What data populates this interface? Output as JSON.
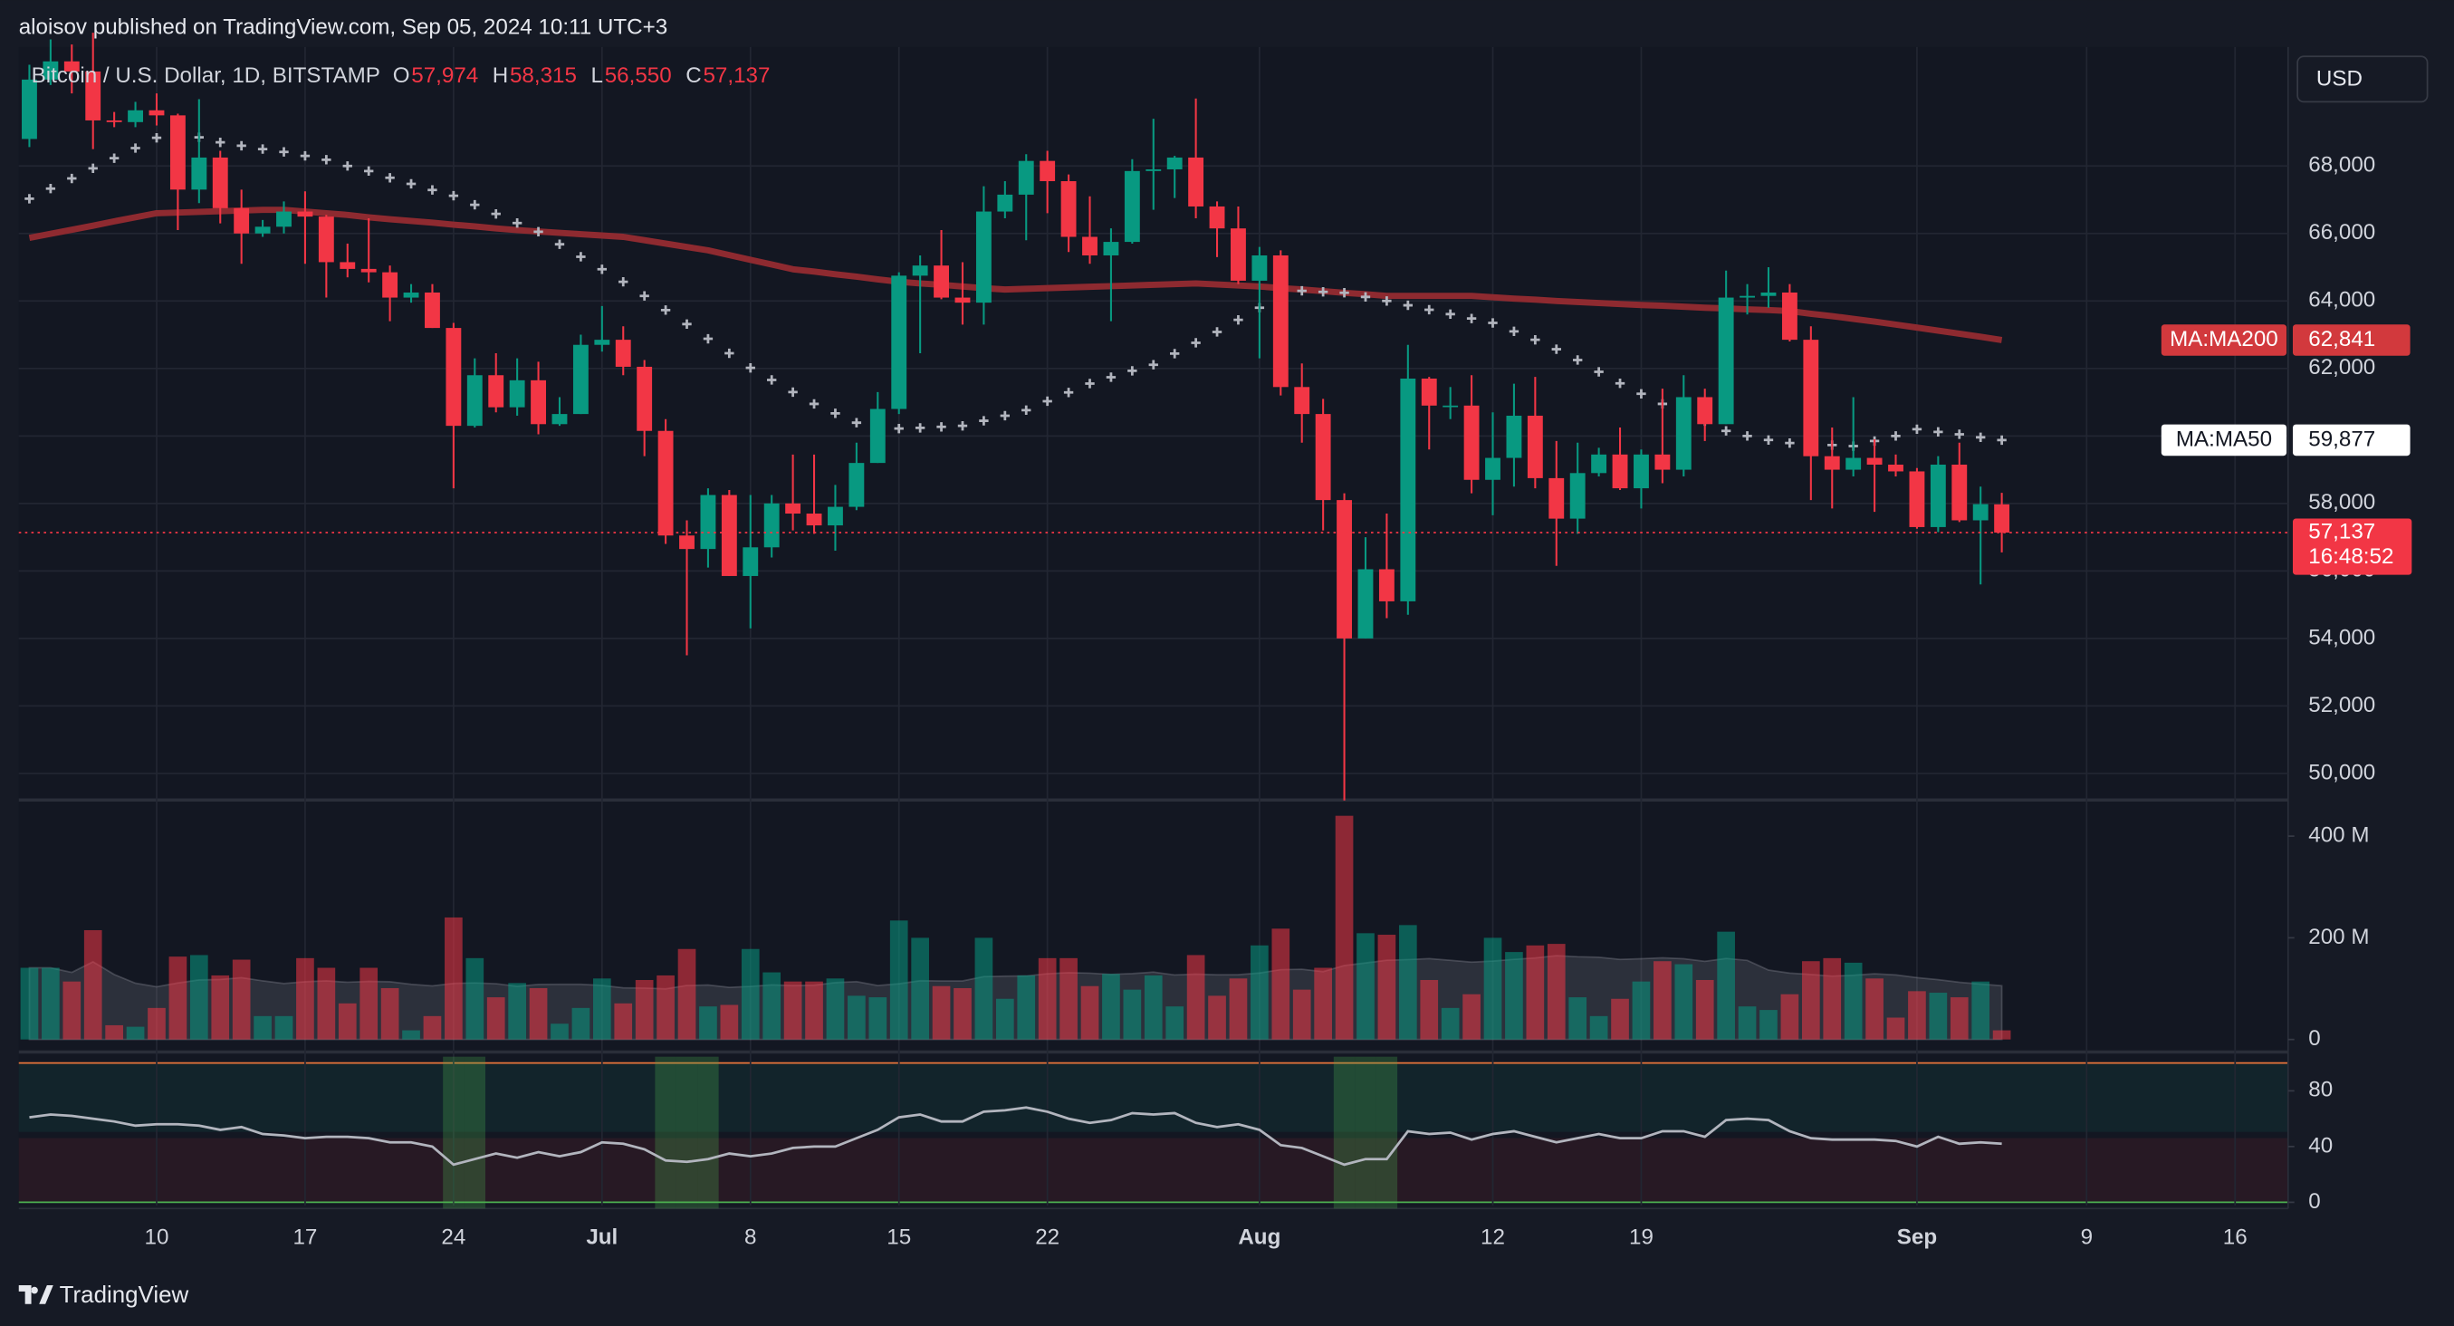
{
  "chart_data": {
    "type": "candlestick",
    "header": "aloisov published on TradingView.com, Sep 05, 2024 10:11 UTC+3",
    "symbol": "Bitcoin / U.S. Dollar, 1D, BITSTAMP",
    "legend_ohlc": [
      {
        "key": "O",
        "value": "57,974"
      },
      {
        "key": "H",
        "value": "58,315"
      },
      {
        "key": "L",
        "value": "56,550"
      },
      {
        "key": "C",
        "value": "57,137"
      }
    ],
    "currency": "USD",
    "footer": "TradingView",
    "up_color": "#089981",
    "down_color": "#f23645",
    "x": [
      "2024-06-04",
      "2024-06-05",
      "2024-06-06",
      "2024-06-07",
      "2024-06-08",
      "2024-06-09",
      "2024-06-10",
      "2024-06-11",
      "2024-06-12",
      "2024-06-13",
      "2024-06-14",
      "2024-06-15",
      "2024-06-16",
      "2024-06-17",
      "2024-06-18",
      "2024-06-19",
      "2024-06-20",
      "2024-06-21",
      "2024-06-22",
      "2024-06-23",
      "2024-06-24",
      "2024-06-25",
      "2024-06-26",
      "2024-06-27",
      "2024-06-28",
      "2024-06-29",
      "2024-06-30",
      "2024-07-01",
      "2024-07-02",
      "2024-07-03",
      "2024-07-04",
      "2024-07-05",
      "2024-07-06",
      "2024-07-07",
      "2024-07-08",
      "2024-07-09",
      "2024-07-10",
      "2024-07-11",
      "2024-07-12",
      "2024-07-13",
      "2024-07-14",
      "2024-07-15",
      "2024-07-16",
      "2024-07-17",
      "2024-07-18",
      "2024-07-19",
      "2024-07-20",
      "2024-07-21",
      "2024-07-22",
      "2024-07-23",
      "2024-07-24",
      "2024-07-25",
      "2024-07-26",
      "2024-07-27",
      "2024-07-28",
      "2024-07-29",
      "2024-07-30",
      "2024-07-31",
      "2024-08-01",
      "2024-08-02",
      "2024-08-03",
      "2024-08-04",
      "2024-08-05",
      "2024-08-06",
      "2024-08-07",
      "2024-08-08",
      "2024-08-09",
      "2024-08-10",
      "2024-08-11",
      "2024-08-12",
      "2024-08-13",
      "2024-08-14",
      "2024-08-15",
      "2024-08-16",
      "2024-08-17",
      "2024-08-18",
      "2024-08-19",
      "2024-08-20",
      "2024-08-21",
      "2024-08-22",
      "2024-08-23",
      "2024-08-24",
      "2024-08-25",
      "2024-08-26",
      "2024-08-27",
      "2024-08-28",
      "2024-08-29",
      "2024-08-30",
      "2024-08-31",
      "2024-09-01",
      "2024-09-02",
      "2024-09-03",
      "2024-09-04",
      "2024-09-05"
    ],
    "open": [
      68800,
      70560,
      71100,
      70800,
      69350,
      69300,
      69650,
      69500,
      67300,
      68250,
      66750,
      66000,
      66200,
      66650,
      66500,
      65150,
      64950,
      64850,
      64100,
      64250,
      63200,
      60300,
      61800,
      60850,
      61650,
      60350,
      60650,
      62700,
      62850,
      62050,
      60150,
      57050,
      56650,
      58250,
      55850,
      56700,
      58000,
      57700,
      57350,
      57900,
      59200,
      60800,
      64750,
      65050,
      64100,
      63950,
      66650,
      67150,
      68150,
      67550,
      65900,
      65350,
      65750,
      67850,
      67900,
      68250,
      66800,
      66150,
      64600,
      65350,
      61450,
      60650,
      58100,
      54000,
      56050,
      55100,
      61700,
      60900,
      60900,
      58700,
      59350,
      60600,
      58750,
      57550,
      58900,
      59450,
      58450,
      59450,
      59000,
      61150,
      60350,
      64100,
      64150,
      64250,
      62850,
      59400,
      59000,
      59350,
      59150,
      58950,
      57300,
      59150,
      57500,
      57974
    ],
    "high": [
      71000,
      71750,
      71600,
      71950,
      69600,
      69900,
      70150,
      69550,
      69980,
      68450,
      67300,
      66400,
      66950,
      67250,
      66550,
      65700,
      66450,
      65050,
      64500,
      64500,
      63350,
      62300,
      62450,
      62300,
      62200,
      61150,
      63000,
      63850,
      63250,
      62250,
      60500,
      57500,
      58450,
      58400,
      58250,
      58250,
      59450,
      59450,
      58550,
      59800,
      61300,
      64850,
      65350,
      66100,
      65150,
      67400,
      67550,
      68350,
      68450,
      67750,
      67100,
      66150,
      68200,
      69400,
      68300,
      70000,
      66950,
      66800,
      65600,
      65500,
      62150,
      61100,
      58300,
      57000,
      57700,
      62700,
      61750,
      61450,
      61800,
      60700,
      61550,
      61750,
      59850,
      59800,
      59650,
      60250,
      59600,
      61400,
      61800,
      61400,
      64900,
      64500,
      65000,
      64500,
      63250,
      60250,
      61150,
      59900,
      59450,
      59050,
      59400,
      59800,
      58500,
      58315
    ],
    "low": [
      68560,
      70400,
      70150,
      68500,
      69150,
      69150,
      69200,
      66100,
      66900,
      66300,
      65100,
      65900,
      66000,
      65100,
      64100,
      64700,
      64550,
      63400,
      63950,
      63200,
      58450,
      60250,
      60700,
      60600,
      60050,
      60300,
      60650,
      62500,
      61800,
      59400,
      56800,
      53500,
      56100,
      55850,
      54300,
      56400,
      57200,
      57100,
      56600,
      57800,
      59200,
      60650,
      62450,
      64050,
      63300,
      63300,
      66450,
      65800,
      66600,
      65450,
      65100,
      63400,
      65700,
      66700,
      67050,
      66450,
      65300,
      64500,
      62300,
      61200,
      59800,
      57200,
      49200,
      54000,
      54600,
      54700,
      59600,
      60500,
      58300,
      57650,
      58500,
      58450,
      56150,
      57100,
      58800,
      58400,
      57850,
      58600,
      58800,
      59850,
      60350,
      63600,
      63800,
      62800,
      58100,
      57850,
      58800,
      57750,
      58800,
      57250,
      57150,
      57450,
      55600,
      56550
    ],
    "close": [
      70560,
      71100,
      70800,
      69350,
      69300,
      69650,
      69500,
      67300,
      68250,
      66750,
      66000,
      66200,
      66650,
      66500,
      65150,
      64950,
      64850,
      64100,
      64250,
      63200,
      60300,
      61800,
      60850,
      61650,
      60350,
      60650,
      62700,
      62850,
      62050,
      60150,
      57050,
      56650,
      58250,
      55850,
      56700,
      58000,
      57700,
      57350,
      57900,
      59200,
      60800,
      64750,
      65050,
      64100,
      63950,
      66650,
      67150,
      68150,
      67550,
      65900,
      65350,
      65750,
      67850,
      67900,
      68250,
      66800,
      66150,
      64600,
      65350,
      61450,
      60650,
      58100,
      54000,
      56050,
      55100,
      61700,
      60900,
      60900,
      58700,
      59350,
      60600,
      58750,
      57550,
      58900,
      59450,
      58450,
      59450,
      59000,
      61150,
      60350,
      64100,
      64150,
      64250,
      62850,
      59400,
      59000,
      59350,
      59150,
      58950,
      57300,
      59150,
      57500,
      57980,
      57137
    ],
    "last_price": {
      "value": 57137,
      "label": "57,137"
    },
    "countdown": "16:48:52",
    "ylim": [
      49260,
      71525
    ],
    "yticks": [
      {
        "value": 50000,
        "label": "50,000"
      },
      {
        "value": 52000,
        "label": "52,000"
      },
      {
        "value": 54000,
        "label": "54,000"
      },
      {
        "value": 56000,
        "label": "56,000"
      },
      {
        "value": 58000,
        "label": "58,000"
      },
      {
        "value": 60000,
        "label": "60,000"
      },
      {
        "value": 62000,
        "label": "62,000"
      },
      {
        "value": 64000,
        "label": "64,000"
      },
      {
        "value": 66000,
        "label": "66,000"
      },
      {
        "value": 68000,
        "label": "68,000"
      }
    ],
    "xlim": [
      "2024-06-04",
      "2024-09-19"
    ],
    "xticks": [
      {
        "value": "2024-06-10",
        "label": "10"
      },
      {
        "value": "2024-06-17",
        "label": "17"
      },
      {
        "value": "2024-06-24",
        "label": "24"
      },
      {
        "value": "2024-07-01",
        "label": "Jul"
      },
      {
        "value": "2024-07-08",
        "label": "8"
      },
      {
        "value": "2024-07-15",
        "label": "15"
      },
      {
        "value": "2024-07-22",
        "label": "22"
      },
      {
        "value": "2024-08-01",
        "label": "Aug"
      },
      {
        "value": "2024-08-12",
        "label": "12"
      },
      {
        "value": "2024-08-19",
        "label": "19"
      },
      {
        "value": "2024-09-01",
        "label": "Sep"
      },
      {
        "value": "2024-09-09",
        "label": "9"
      },
      {
        "value": "2024-09-16",
        "label": "16"
      }
    ],
    "overlays": [
      {
        "name": "MA:MA200",
        "style": "line",
        "color": "#8e2a30",
        "value_label": "62,841",
        "values": [
          65870,
          65990,
          66110,
          66230,
          66360,
          66480,
          66600,
          66620,
          66640,
          66660,
          66680,
          66700,
          66700,
          66650,
          66600,
          66550,
          66480,
          66420,
          66370,
          66320,
          66260,
          66210,
          66150,
          66100,
          66060,
          66020,
          65980,
          65940,
          65900,
          65800,
          65700,
          65600,
          65500,
          65360,
          65220,
          65080,
          64940,
          64870,
          64790,
          64720,
          64640,
          64570,
          64520,
          64480,
          64430,
          64380,
          64340,
          64360,
          64380,
          64400,
          64420,
          64440,
          64460,
          64480,
          64500,
          64520,
          64490,
          64460,
          64430,
          64380,
          64340,
          64290,
          64240,
          64200,
          64150,
          64150,
          64150,
          64150,
          64150,
          64110,
          64070,
          64040,
          64000,
          63970,
          63940,
          63910,
          63880,
          63860,
          63830,
          63800,
          63780,
          63750,
          63730,
          63700,
          63620,
          63550,
          63470,
          63390,
          63300,
          63210,
          63120,
          63030,
          62940,
          62841
        ]
      },
      {
        "name": "MA:MA50",
        "style": "cross",
        "color": "#b2b5be",
        "value_label": "59,877",
        "values": [
          67030,
          67330,
          67630,
          67930,
          68230,
          68530,
          68835,
          68920,
          68850,
          68700,
          68600,
          68500,
          68417,
          68300,
          68185,
          68000,
          67850,
          67650,
          67470,
          67290,
          67118,
          66850,
          66580,
          66310,
          66052,
          65680,
          65310,
          64940,
          64568,
          64150,
          63730,
          63315,
          62880,
          62450,
          62017,
          61660,
          61300,
          60950,
          60670,
          60393,
          60300,
          60220,
          60240,
          60270,
          60300,
          60450,
          60600,
          60765,
          61030,
          61290,
          61553,
          61740,
          61930,
          62110,
          62440,
          62760,
          63083,
          63440,
          63800,
          64150,
          64300,
          64270,
          64243,
          64120,
          64000,
          63872,
          63740,
          63610,
          63480,
          63350,
          63100,
          62850,
          62570,
          62250,
          61900,
          61560,
          61250,
          60950,
          60700,
          60440,
          60150,
          60000,
          59880,
          59790,
          59760,
          59730,
          59700,
          59850,
          60000,
          60200,
          60120,
          60050,
          59960,
          59877
        ]
      }
    ],
    "volume": {
      "values": [
        141,
        141,
        114,
        215,
        28,
        25,
        62,
        163,
        166,
        126,
        157,
        46,
        46,
        160,
        141,
        71,
        141,
        101,
        18,
        46,
        240,
        160,
        83,
        111,
        101,
        31,
        62,
        120,
        71,
        117,
        126,
        178,
        65,
        68,
        178,
        132,
        114,
        114,
        120,
        86,
        83,
        234,
        200,
        105,
        101,
        200,
        80,
        126,
        160,
        160,
        105,
        129,
        98,
        126,
        65,
        166,
        86,
        120,
        185,
        218,
        98,
        141,
        440,
        209,
        206,
        225,
        117,
        62,
        89,
        200,
        172,
        185,
        188,
        83,
        46,
        80,
        114,
        154,
        148,
        117,
        212,
        65,
        58,
        89,
        154,
        160,
        151,
        120,
        43,
        95,
        92,
        83,
        114,
        18
      ],
      "ylim": [
        0,
        468
      ],
      "yticks": [
        0,
        {
          "value": 200,
          "label": "200 M"
        },
        {
          "value": 400,
          "label": "400 M"
        }
      ]
    },
    "rsi": {
      "color": "#b2b5be",
      "values": [
        61,
        63,
        62,
        60,
        58,
        55,
        56,
        56,
        55,
        52,
        54,
        49,
        48,
        46,
        47,
        47,
        46,
        43,
        43,
        40,
        27,
        31,
        35,
        32,
        36,
        33,
        36,
        43,
        42,
        38,
        30,
        29,
        31,
        35,
        33,
        35,
        39,
        40,
        40,
        46,
        52,
        61,
        63,
        58,
        58,
        65,
        66,
        68,
        65,
        60,
        57,
        59,
        64,
        63,
        64,
        57,
        54,
        56,
        52,
        41,
        39,
        33,
        27,
        31,
        31,
        51,
        49,
        50,
        45,
        49,
        51,
        47,
        43,
        46,
        49,
        46,
        46,
        51,
        51,
        47,
        59,
        60,
        59,
        51,
        46,
        45,
        45,
        45,
        44,
        40,
        47,
        42,
        43,
        42
      ],
      "ylim": [
        0,
        100
      ],
      "yticks": [
        0,
        40,
        80
      ]
    }
  }
}
